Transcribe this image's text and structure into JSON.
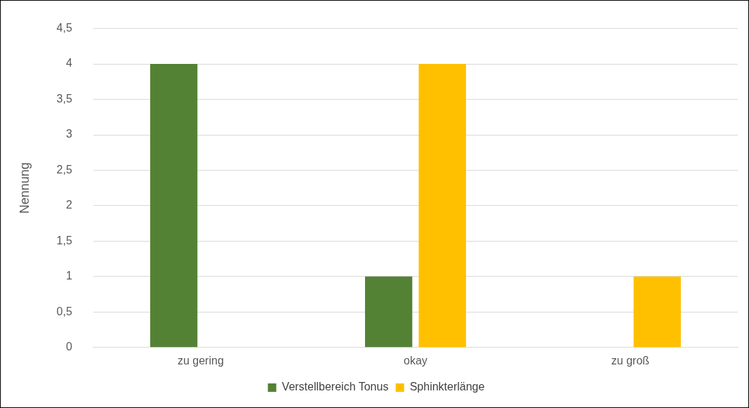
{
  "chart_data": {
    "type": "bar",
    "ylabel": "Nennung",
    "categories": [
      "zu gering",
      "okay",
      "zu groß"
    ],
    "series": [
      {
        "name": "Verstellbereich Tonus",
        "color": "#548235",
        "values": [
          4,
          1,
          0
        ]
      },
      {
        "name": "Sphinkterlänge",
        "color": "#ffc000",
        "values": [
          0,
          4,
          1
        ]
      }
    ],
    "ylim": [
      0,
      4.5
    ],
    "yticks": [
      0,
      {
        "value": 0.5,
        "label": "0,5"
      },
      1,
      {
        "value": 1.5,
        "label": "1,5"
      },
      2,
      {
        "value": 2.5,
        "label": "2,5"
      },
      3,
      {
        "value": 3.5,
        "label": "3,5"
      },
      4,
      {
        "value": 4.5,
        "label": "4,5"
      }
    ],
    "grid": "y",
    "legend": "bottom"
  }
}
